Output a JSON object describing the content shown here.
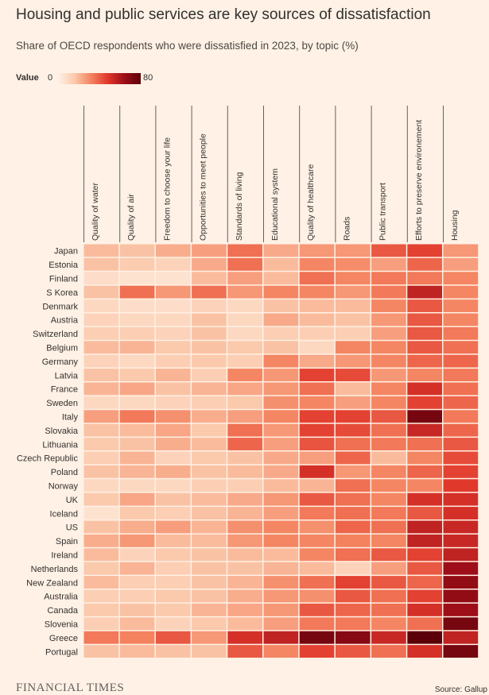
{
  "chart_data": {
    "type": "heatmap",
    "title": "Housing and public services are key sources of dissatisfaction",
    "subtitle": "Share of OECD respondents who were dissatisfied in 2023, by topic (%)",
    "legend": {
      "label": "Value",
      "min": 0,
      "max": 80
    },
    "columns": [
      "Quality of water",
      "Quality of air",
      "Freedom to choose  your life",
      "Opportunities to meet people",
      "Standards of living",
      "Educational system",
      "Quality of healthcare",
      "Roads",
      "Public  transport",
      "Efforts to preserve environement",
      "Housing"
    ],
    "rows": [
      {
        "country": "Japan",
        "values": [
          20,
          18,
          24,
          28,
          40,
          25,
          30,
          30,
          45,
          50,
          30
        ]
      },
      {
        "country": "Estonia",
        "values": [
          18,
          15,
          12,
          25,
          40,
          20,
          35,
          33,
          28,
          42,
          28
        ]
      },
      {
        "country": "Finland",
        "values": [
          8,
          6,
          6,
          20,
          28,
          20,
          40,
          35,
          38,
          38,
          35
        ]
      },
      {
        "country": "S Korea",
        "values": [
          18,
          40,
          30,
          40,
          30,
          35,
          35,
          30,
          38,
          60,
          35
        ]
      },
      {
        "country": "Denmark",
        "values": [
          10,
          8,
          8,
          12,
          10,
          18,
          20,
          20,
          35,
          45,
          35
        ]
      },
      {
        "country": "Austria",
        "values": [
          12,
          10,
          10,
          18,
          10,
          25,
          20,
          18,
          30,
          45,
          35
        ]
      },
      {
        "country": "Switzerland",
        "values": [
          14,
          14,
          12,
          18,
          10,
          14,
          14,
          14,
          28,
          45,
          38
        ]
      },
      {
        "country": "Belgium",
        "values": [
          20,
          22,
          16,
          18,
          16,
          18,
          10,
          35,
          35,
          45,
          40
        ]
      },
      {
        "country": "Germany",
        "values": [
          12,
          10,
          14,
          16,
          14,
          35,
          25,
          30,
          35,
          42,
          42
        ]
      },
      {
        "country": "Latvia",
        "values": [
          18,
          16,
          22,
          14,
          35,
          30,
          50,
          48,
          30,
          35,
          38
        ]
      },
      {
        "country": "France",
        "values": [
          22,
          26,
          18,
          22,
          26,
          30,
          40,
          20,
          35,
          55,
          40
        ]
      },
      {
        "country": "Sweden",
        "values": [
          10,
          10,
          12,
          14,
          16,
          32,
          35,
          28,
          35,
          50,
          42
        ]
      },
      {
        "country": "Italy",
        "values": [
          28,
          38,
          32,
          24,
          28,
          35,
          50,
          50,
          45,
          75,
          38
        ]
      },
      {
        "country": "Slovakia",
        "values": [
          18,
          20,
          26,
          16,
          40,
          30,
          50,
          48,
          40,
          58,
          42
        ]
      },
      {
        "country": "Lithuania",
        "values": [
          16,
          18,
          24,
          20,
          42,
          28,
          46,
          40,
          38,
          40,
          45
        ]
      },
      {
        "country": "Czech Republic",
        "values": [
          14,
          22,
          12,
          16,
          18,
          25,
          28,
          42,
          20,
          35,
          48
        ]
      },
      {
        "country": "Poland",
        "values": [
          18,
          22,
          24,
          18,
          20,
          25,
          55,
          30,
          35,
          42,
          50
        ]
      },
      {
        "country": "Norway",
        "values": [
          10,
          10,
          10,
          14,
          14,
          20,
          22,
          40,
          35,
          35,
          52
        ]
      },
      {
        "country": "UK",
        "values": [
          16,
          26,
          18,
          20,
          25,
          30,
          45,
          40,
          35,
          55,
          55
        ]
      },
      {
        "country": "Iceland",
        "values": [
          6,
          16,
          14,
          18,
          22,
          28,
          38,
          40,
          38,
          45,
          55
        ]
      },
      {
        "country": "US",
        "values": [
          18,
          24,
          28,
          22,
          32,
          35,
          32,
          42,
          40,
          60,
          58
        ]
      },
      {
        "country": "Spain",
        "values": [
          24,
          30,
          20,
          20,
          30,
          35,
          35,
          36,
          35,
          60,
          58
        ]
      },
      {
        "country": "Ireland",
        "values": [
          20,
          12,
          16,
          18,
          20,
          20,
          35,
          40,
          45,
          50,
          60
        ]
      },
      {
        "country": "Netherlands",
        "values": [
          16,
          22,
          14,
          18,
          18,
          22,
          20,
          12,
          28,
          45,
          68
        ]
      },
      {
        "country": "New Zealand",
        "values": [
          20,
          14,
          14,
          18,
          22,
          32,
          40,
          50,
          45,
          42,
          70
        ]
      },
      {
        "country": "Australia",
        "values": [
          14,
          14,
          16,
          18,
          24,
          30,
          32,
          45,
          40,
          50,
          70
        ]
      },
      {
        "country": "Canada",
        "values": [
          16,
          18,
          16,
          22,
          26,
          30,
          45,
          42,
          40,
          55,
          68
        ]
      },
      {
        "country": "Slovenia",
        "values": [
          14,
          20,
          12,
          16,
          20,
          28,
          38,
          38,
          35,
          40,
          75
        ]
      },
      {
        "country": "Greece",
        "values": [
          38,
          36,
          45,
          30,
          55,
          60,
          75,
          72,
          58,
          85,
          60
        ]
      },
      {
        "country": "Portugal",
        "values": [
          18,
          20,
          18,
          18,
          45,
          35,
          50,
          45,
          40,
          55,
          75
        ]
      }
    ]
  },
  "footer": {
    "brand": "FINANCIAL TIMES",
    "source": "Source: Gallup"
  }
}
